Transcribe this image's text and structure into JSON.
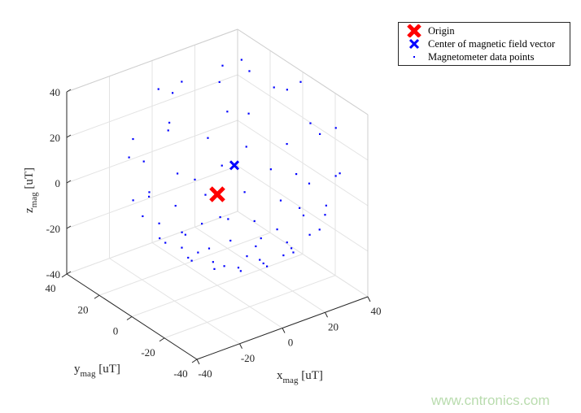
{
  "chart_data": {
    "type": "scatter3d",
    "xlabel": "x",
    "xlabel_sub": "mag",
    "xlabel_unit": " [uT]",
    "ylabel": "y",
    "ylabel_sub": "mag",
    "ylabel_unit": " [uT]",
    "zlabel": "z",
    "zlabel_sub": "mag",
    "zlabel_unit": " [uT]",
    "xlim": [
      -40,
      40
    ],
    "ylim": [
      -40,
      40
    ],
    "zlim": [
      -40,
      40
    ],
    "ticks": [
      "-40",
      "-20",
      "0",
      "20",
      "40"
    ],
    "grid": true,
    "legend_position": "top-right",
    "legend": [
      {
        "label": "Origin",
        "marker": "x-large",
        "color": "#ff0000"
      },
      {
        "label": "Center of magnetic field vector",
        "marker": "x",
        "color": "#0000ff"
      },
      {
        "label": "Magnetometer data points",
        "marker": "dot",
        "color": "#0000ff"
      }
    ],
    "origin": [
      0,
      0,
      0
    ],
    "center": [
      8,
      0,
      10
    ],
    "points": [
      [
        18,
        0,
        -29
      ],
      [
        13,
        9,
        -29
      ],
      [
        3,
        9,
        -29
      ],
      [
        -2,
        0,
        -29
      ],
      [
        3,
        -9,
        -29
      ],
      [
        13,
        -9,
        -29
      ],
      [
        28,
        0,
        -25
      ],
      [
        25,
        10,
        -25
      ],
      [
        18,
        17,
        -25
      ],
      [
        8,
        20,
        -25
      ],
      [
        -2,
        17,
        -25
      ],
      [
        -9,
        10,
        -25
      ],
      [
        -12,
        0,
        -25
      ],
      [
        -9,
        -10,
        -25
      ],
      [
        -2,
        -17,
        -25
      ],
      [
        8,
        -20,
        -25
      ],
      [
        18,
        -17,
        -25
      ],
      [
        25,
        -10,
        -25
      ],
      [
        35,
        7,
        -18
      ],
      [
        28,
        20,
        -18
      ],
      [
        15,
        27,
        -18
      ],
      [
        1,
        27,
        -18
      ],
      [
        -12,
        20,
        -18
      ],
      [
        -19,
        7,
        -18
      ],
      [
        -19,
        -7,
        -18
      ],
      [
        -12,
        -20,
        -18
      ],
      [
        1,
        -27,
        -18
      ],
      [
        15,
        -27,
        -18
      ],
      [
        28,
        -20,
        -18
      ],
      [
        35,
        -7,
        -18
      ],
      [
        43,
        0,
        -10
      ],
      [
        38,
        17,
        -10
      ],
      [
        25,
        30,
        -10
      ],
      [
        8,
        35,
        -10
      ],
      [
        -9,
        30,
        -10
      ],
      [
        -22,
        17,
        -10
      ],
      [
        -27,
        0,
        -10
      ],
      [
        -22,
        -17,
        -10
      ],
      [
        -9,
        -30,
        -10
      ],
      [
        8,
        -35,
        -10
      ],
      [
        25,
        -30,
        -10
      ],
      [
        38,
        -17,
        -10
      ],
      [
        44,
        15,
        0
      ],
      [
        23,
        36,
        0
      ],
      [
        -7,
        36,
        0
      ],
      [
        -28,
        15,
        0
      ],
      [
        -28,
        -15,
        0
      ],
      [
        -7,
        -36,
        0
      ],
      [
        23,
        -36,
        0
      ],
      [
        44,
        -15,
        0
      ],
      [
        48,
        0,
        10
      ],
      [
        36,
        28,
        10
      ],
      [
        8,
        40,
        10
      ],
      [
        -20,
        28,
        10
      ],
      [
        -32,
        0,
        10
      ],
      [
        -20,
        -28,
        10
      ],
      [
        8,
        -40,
        10
      ],
      [
        36,
        -28,
        10
      ],
      [
        41,
        19,
        24
      ],
      [
        8,
        38,
        24
      ],
      [
        -25,
        19,
        24
      ],
      [
        -25,
        -19,
        24
      ],
      [
        8,
        -38,
        24
      ],
      [
        41,
        -19,
        24
      ],
      [
        39,
        0,
        36
      ],
      [
        23,
        27,
        36
      ],
      [
        -7,
        27,
        36
      ],
      [
        -23,
        0,
        36
      ],
      [
        -7,
        -27,
        36
      ],
      [
        23,
        -27,
        36
      ],
      [
        22,
        14,
        45
      ],
      [
        -6,
        14,
        45
      ],
      [
        -6,
        -14,
        45
      ],
      [
        22,
        -14,
        45
      ],
      [
        15,
        0,
        49
      ],
      [
        1,
        0,
        49
      ]
    ]
  },
  "watermark": "www.cntronics.com"
}
